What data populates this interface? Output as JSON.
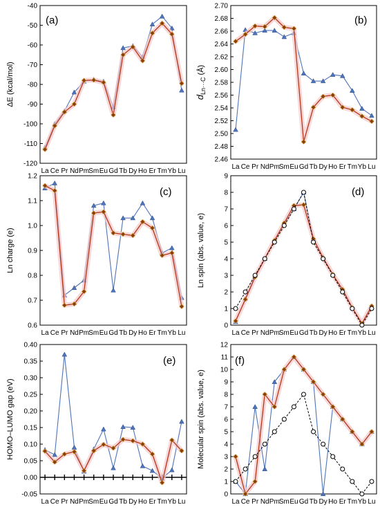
{
  "colors": {
    "blue": "#4f73b8",
    "red": "#b3361b",
    "marker_red": "#8b3a0c",
    "glow": "#f4c6c6",
    "black": "#000000",
    "frame": "#000000"
  },
  "chart_data": [
    {
      "id": "a",
      "type": "line",
      "panel_label": "(a)",
      "categories": [
        "La",
        "Ce",
        "Pr",
        "Nd",
        "Pm",
        "Sm",
        "Eu",
        "Gd",
        "Tb",
        "Dy",
        "Ho",
        "Er",
        "Tm",
        "Yb",
        "Lu"
      ],
      "ylabel": "ΔE (kcal/mol)",
      "ylim": [
        -120,
        -40
      ],
      "yticks": [
        -120,
        -110,
        -100,
        -90,
        -80,
        -70,
        -60,
        -50,
        -40
      ],
      "grid": false,
      "series": [
        {
          "style": "blue-triangle",
          "values": [
            -112,
            -100,
            -93.5,
            -84,
            -78.5,
            -77.5,
            -78.5,
            -91.5,
            -61.5,
            -60.5,
            -66,
            -49.5,
            -45.5,
            -51.5,
            -83
          ]
        },
        {
          "style": "red-diamond",
          "values": [
            -113,
            -101,
            -94,
            -90,
            -78,
            -77.8,
            -79,
            -95.5,
            -65,
            -61,
            -68,
            -54,
            -49,
            -54.5,
            -79.5
          ]
        }
      ]
    },
    {
      "id": "b",
      "type": "line",
      "panel_label": "(b)",
      "categories": [
        "La",
        "Ce",
        "Pr",
        "Nd",
        "Pm",
        "Sm",
        "Eu",
        "Gd",
        "Tb",
        "Dy",
        "Ho",
        "Er",
        "Tm",
        "Yb",
        "Lu"
      ],
      "ylabel_main": "d",
      "ylabel_sub": "Ln···C",
      "ylabel_unit": " (Å)",
      "ylim": [
        2.46,
        2.7
      ],
      "yticks": [
        2.46,
        2.48,
        2.5,
        2.52,
        2.54,
        2.56,
        2.58,
        2.6,
        2.62,
        2.64,
        2.66,
        2.68,
        2.7
      ],
      "grid": false,
      "series": [
        {
          "style": "blue-triangle",
          "values": [
            2.506,
            2.662,
            2.657,
            2.661,
            2.661,
            2.651,
            2.657,
            2.594,
            2.582,
            2.582,
            2.592,
            2.59,
            2.567,
            2.539,
            2.528
          ]
        },
        {
          "style": "red-diamond",
          "values": [
            2.644,
            2.655,
            2.668,
            2.667,
            2.681,
            2.666,
            2.664,
            2.487,
            2.541,
            2.558,
            2.56,
            2.541,
            2.537,
            2.527,
            2.519
          ]
        }
      ]
    },
    {
      "id": "c",
      "type": "line",
      "panel_label": "(c)",
      "categories": [
        "La",
        "Ce",
        "Pr",
        "Nd",
        "Pm",
        "Sm",
        "Eu",
        "Gd",
        "Tb",
        "Dy",
        "Ho",
        "Er",
        "Tm",
        "Yb",
        "Lu"
      ],
      "ylabel": "Ln charge (e)",
      "ylim": [
        0.6,
        1.2
      ],
      "yticks": [
        0.6,
        0.7,
        0.8,
        0.9,
        1.0,
        1.1,
        1.2
      ],
      "grid": false,
      "series": [
        {
          "style": "blue-triangle",
          "values": [
            1.15,
            1.17,
            0.72,
            0.75,
            0.78,
            1.08,
            1.09,
            0.74,
            1.03,
            1.03,
            1.09,
            1.03,
            0.89,
            0.91,
            0.71
          ]
        },
        {
          "style": "red-diamond",
          "values": [
            1.16,
            1.14,
            0.68,
            0.685,
            0.735,
            1.05,
            1.055,
            0.97,
            0.965,
            0.96,
            1.015,
            0.99,
            0.88,
            0.89,
            0.675
          ]
        }
      ]
    },
    {
      "id": "d",
      "type": "line",
      "panel_label": "(d)",
      "categories": [
        "La",
        "Ce",
        "Pr",
        "Nd",
        "Pm",
        "Sm",
        "Eu",
        "Gd",
        "Tb",
        "Dy",
        "Ho",
        "Er",
        "Tm",
        "Yb",
        "Lu"
      ],
      "ylabel": "Ln spin (abs. value, e)",
      "ylim": [
        0,
        9
      ],
      "yticks": [
        0,
        1,
        2,
        3,
        4,
        5,
        6,
        7,
        8,
        9
      ],
      "grid": false,
      "series": [
        {
          "style": "blue-triangle",
          "values": [
            0.2,
            1.6,
            3.0,
            4.0,
            5.1,
            6.1,
            7.0,
            8.0,
            5.2,
            4.1,
            3.05,
            2.1,
            1.05,
            0.1,
            1.1
          ]
        },
        {
          "style": "red-diamond",
          "values": [
            0.25,
            1.55,
            2.9,
            4.0,
            5.1,
            6.15,
            7.2,
            7.25,
            5.2,
            4.05,
            3.05,
            2.15,
            1.05,
            0.1,
            1.15
          ]
        },
        {
          "style": "black-circle",
          "values": [
            1,
            2,
            3,
            4,
            5,
            6,
            7,
            8,
            5,
            4,
            3,
            2,
            1,
            0,
            1
          ]
        }
      ]
    },
    {
      "id": "e",
      "type": "line",
      "panel_label": "(e)",
      "categories": [
        "La",
        "Ce",
        "Pr",
        "Nd",
        "Pm",
        "Sm",
        "Eu",
        "Gd",
        "Tb",
        "Dy",
        "Ho",
        "Er",
        "Tm",
        "Yb",
        "Lu"
      ],
      "ylabel": "HOMO–LUMO gap (eV)",
      "ylim": [
        -0.05,
        0.4
      ],
      "yticks": [
        -0.05,
        0.0,
        0.05,
        0.1,
        0.15,
        0.2,
        0.25,
        0.3,
        0.35,
        0.4
      ],
      "ytick_labels": [
        "-0.05",
        "0.00",
        "0.05",
        "0.10",
        "0.15",
        "0.20",
        "0.25",
        "0.30",
        "0.35",
        "0.40"
      ],
      "grid": false,
      "series": [
        {
          "style": "blue-triangle",
          "values": [
            0.083,
            0.068,
            0.37,
            0.09,
            0.018,
            0.085,
            0.145,
            0.028,
            0.152,
            0.15,
            0.034,
            0.02,
            -0.003,
            0.022,
            0.168
          ]
        },
        {
          "style": "red-diamond",
          "values": [
            0.079,
            0.046,
            0.07,
            0.077,
            0.02,
            0.08,
            0.099,
            0.088,
            0.114,
            0.11,
            0.1,
            0.07,
            -0.016,
            0.112,
            0.08
          ]
        }
      ]
    },
    {
      "id": "f",
      "type": "line",
      "panel_label": "(f)",
      "categories": [
        "La",
        "Ce",
        "Pr",
        "Nd",
        "Pm",
        "Sm",
        "Eu",
        "Gd",
        "Tb",
        "Dy",
        "Ho",
        "Er",
        "Tm",
        "Yb",
        "Lu"
      ],
      "ylabel": "Molecular spin (abs. value, e)",
      "ylim": [
        0,
        12
      ],
      "yticks": [
        0,
        1,
        2,
        3,
        4,
        5,
        6,
        7,
        8,
        9,
        10,
        11,
        12
      ],
      "grid": false,
      "series": [
        {
          "style": "blue-triangle",
          "values": [
            1,
            0,
            7,
            2,
            9,
            10,
            11,
            10,
            9,
            0,
            7,
            6,
            5,
            4,
            5
          ]
        },
        {
          "style": "red-diamond",
          "values": [
            3,
            0,
            1,
            8,
            7,
            10,
            11,
            10,
            9,
            8,
            7,
            6,
            5,
            4,
            5
          ]
        },
        {
          "style": "black-circle",
          "values": [
            1,
            2,
            3,
            4,
            5,
            6,
            7,
            8,
            5,
            4,
            3,
            2,
            1,
            0,
            1
          ]
        }
      ]
    }
  ]
}
